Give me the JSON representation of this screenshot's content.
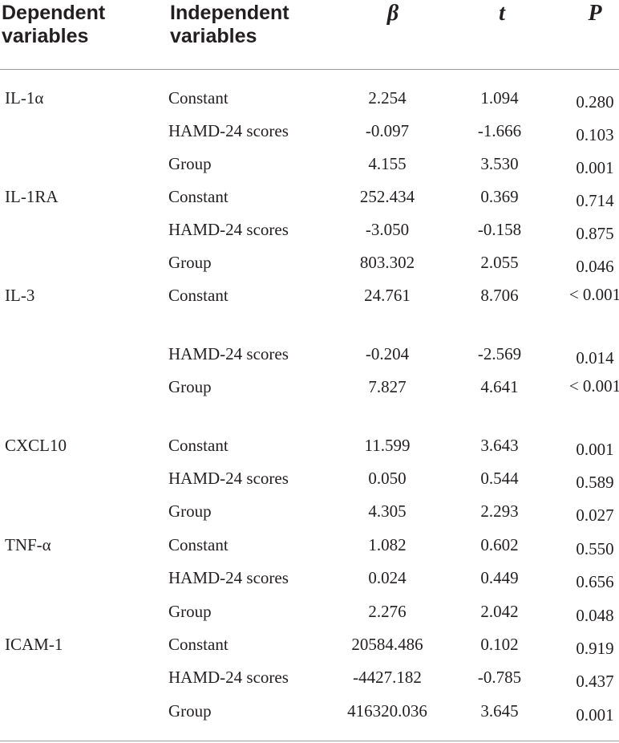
{
  "header": {
    "dependent": "Dependent variables",
    "independent": "Independent variables",
    "beta": "β",
    "t": "t",
    "p": "P"
  },
  "rows": [
    {
      "dep": "IL-1α",
      "ind": "Constant",
      "beta": "2.254",
      "t": "1.094",
      "p": "0.280"
    },
    {
      "dep": "",
      "ind": "HAMD-24 scores",
      "beta": "-0.097",
      "t": "-1.666",
      "p": "0.103"
    },
    {
      "dep": "",
      "ind": "Group",
      "beta": "4.155",
      "t": "3.530",
      "p": "0.001"
    },
    {
      "dep": "IL-1RA",
      "ind": "Constant",
      "beta": "252.434",
      "t": "0.369",
      "p": "0.714"
    },
    {
      "dep": "",
      "ind": "HAMD-24 scores",
      "beta": "-3.050",
      "t": "-0.158",
      "p": "0.875"
    },
    {
      "dep": "",
      "ind": "Group",
      "beta": "803.302",
      "t": "2.055",
      "p": "0.046"
    },
    {
      "dep": "IL-3",
      "ind": "Constant",
      "beta": "24.761",
      "t": "8.706",
      "p": "< 0.001"
    },
    {
      "dep": "",
      "ind": "HAMD-24 scores",
      "beta": "-0.204",
      "t": "-2.569",
      "p": "0.014"
    },
    {
      "dep": "",
      "ind": "Group",
      "beta": "7.827",
      "t": "4.641",
      "p": "< 0.001"
    },
    {
      "dep": "CXCL10",
      "ind": "Constant",
      "beta": "11.599",
      "t": "3.643",
      "p": "0.001"
    },
    {
      "dep": "",
      "ind": "HAMD-24 scores",
      "beta": "0.050",
      "t": "0.544",
      "p": "0.589"
    },
    {
      "dep": "",
      "ind": "Group",
      "beta": "4.305",
      "t": "2.293",
      "p": "0.027"
    },
    {
      "dep": "TNF-α",
      "ind": "Constant",
      "beta": "1.082",
      "t": "0.602",
      "p": "0.550"
    },
    {
      "dep": "",
      "ind": "HAMD-24 scores",
      "beta": "0.024",
      "t": "0.449",
      "p": "0.656"
    },
    {
      "dep": "",
      "ind": "Group",
      "beta": "2.276",
      "t": "2.042",
      "p": "0.048"
    },
    {
      "dep": "ICAM-1",
      "ind": "Constant",
      "beta": "20584.486",
      "t": "0.102",
      "p": "0.919"
    },
    {
      "dep": "",
      "ind": "HAMD-24 scores",
      "beta": "-4427.182",
      "t": "-0.785",
      "p": "0.437"
    },
    {
      "dep": "",
      "ind": "Group",
      "beta": "416320.036",
      "t": "3.645",
      "p": "0.001"
    }
  ]
}
